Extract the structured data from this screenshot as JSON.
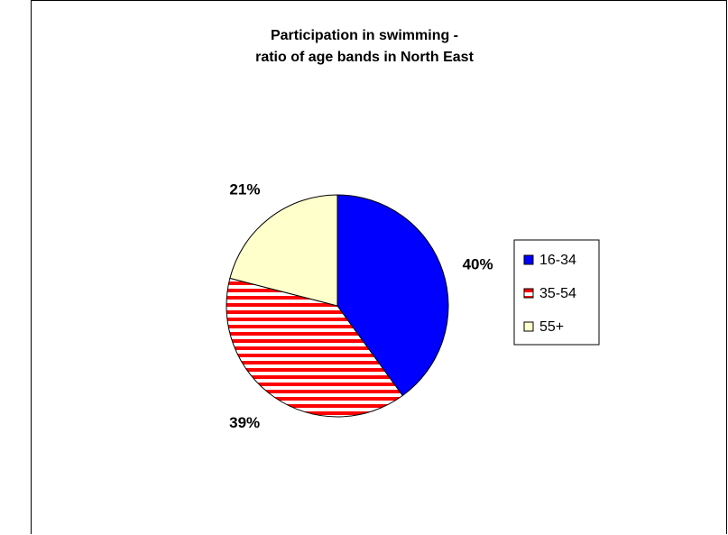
{
  "chart_data": {
    "type": "pie",
    "title_lines": [
      "Participation in swimming -",
      "ratio of age bands in North East"
    ],
    "categories": [
      "16-34",
      "35-54",
      "55+"
    ],
    "values": [
      40,
      39,
      21
    ],
    "value_labels": [
      "40%",
      "39%",
      "21%"
    ],
    "colors": [
      "#0000FF",
      "#FF0000",
      "#FFFFCC"
    ],
    "patterns": [
      "solid",
      "horizontal-stripes",
      "solid"
    ],
    "legend_position": "right"
  }
}
